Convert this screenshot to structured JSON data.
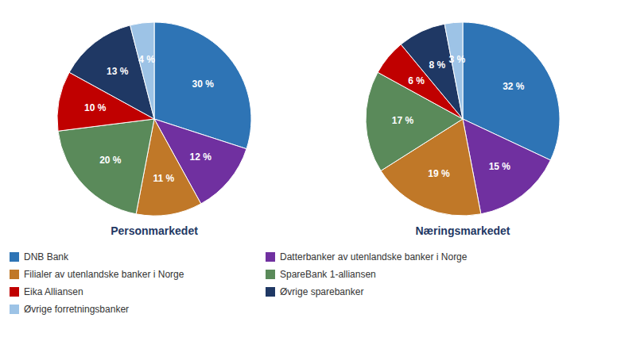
{
  "chart_data": {
    "type": "pie",
    "categories": [
      "DNB Bank",
      "Datterbanker av utenlandske banker i Norge",
      "Filialer av utenlandske banker i Norge",
      "SpareBank 1-alliansen",
      "Eika Alliansen",
      "Øvrige sparebanker",
      "Øvrige forretningsbanker"
    ],
    "colors": [
      "#2e74b5",
      "#7030a0",
      "#c07828",
      "#5a8a5a",
      "#c00000",
      "#1f3864",
      "#9dc3e6"
    ],
    "series": [
      {
        "name": "Personmarkedet",
        "values": [
          30,
          12,
          11,
          20,
          10,
          13,
          4
        ],
        "value_labels": [
          "30 %",
          "12 %",
          "11 %",
          "20 %",
          "10 %",
          "13 %",
          "4 %"
        ]
      },
      {
        "name": "Næringsmarkedet",
        "values": [
          32,
          15,
          19,
          17,
          6,
          8,
          3
        ],
        "value_labels": [
          "32 %",
          "15 %",
          "19 %",
          "17 %",
          "6 %",
          "8 %",
          "3 %"
        ]
      }
    ],
    "data_labels": true,
    "legend": "bottom"
  }
}
